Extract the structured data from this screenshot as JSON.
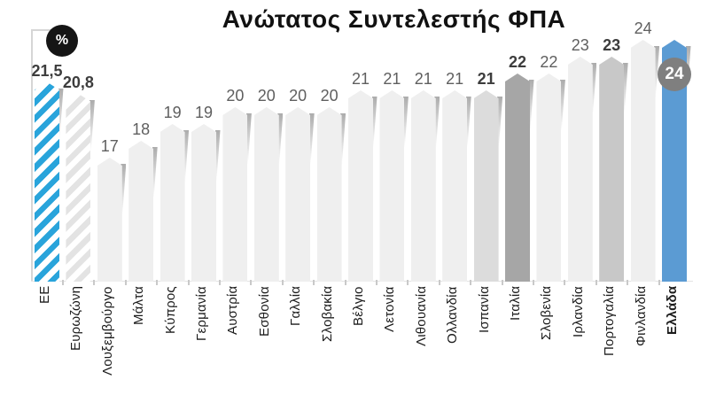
{
  "title": "Ανώτατος Συντελεστής ΦΠΑ",
  "unit_badge": "%",
  "greece_badge_value": "24",
  "colors": {
    "stripe_blue": "#29a4db",
    "stripe_gray": "#e3e3e3",
    "default_bar": "#efefef",
    "spain_bar": "#dcdcdc",
    "italy_bar": "#a6a6a6",
    "portugal_bar": "#c8c8c8",
    "greece_bar": "#5b9bd3",
    "greece_badge_bg": "#7f7f7f",
    "pct_badge_bg": "#151515",
    "value_text": "#5f5f5f",
    "value_text_bold": "#3d3d3d",
    "label_text": "#1b1b1b"
  },
  "chart_data": {
    "type": "bar",
    "title": "Ανώτατος Συντελεστής ΦΠΑ",
    "unit": "%",
    "xlabel": "",
    "ylabel": "",
    "grid": false,
    "legend": "none",
    "ylim": [
      9.6,
      24
    ],
    "categories": [
      "ΕΕ",
      "Ευρωζώνη",
      "Λουξεμβούργο",
      "Μάλτα",
      "Κύπρος",
      "Γερμανία",
      "Αυστρία",
      "Εσθονία",
      "Γαλλία",
      "Σλοβακία",
      "Βέλγιο",
      "Λετονία",
      "Λιθουανία",
      "Ολλανδία",
      "Ισπανία",
      "Ιταλία",
      "Σλοβενία",
      "Ιρλανδία",
      "Πορτογαλία",
      "Φινλανδία",
      "Ελλάδα"
    ],
    "values": [
      21.5,
      20.8,
      17,
      18,
      19,
      19,
      20,
      20,
      20,
      20,
      21,
      21,
      21,
      21,
      21,
      22,
      22,
      23,
      23,
      24,
      24
    ],
    "bars": [
      {
        "label": "ΕΕ",
        "value": 21.5,
        "display": "21,5",
        "style": "striped-blue",
        "value_bold": true
      },
      {
        "label": "Ευρωζώνη",
        "value": 20.8,
        "display": "20,8",
        "style": "striped-gray",
        "value_bold": true
      },
      {
        "label": "Λουξεμβούργο",
        "value": 17,
        "display": "17",
        "style": "solid"
      },
      {
        "label": "Μάλτα",
        "value": 18,
        "display": "18",
        "style": "solid"
      },
      {
        "label": "Κύπρος",
        "value": 19,
        "display": "19",
        "style": "solid"
      },
      {
        "label": "Γερμανία",
        "value": 19,
        "display": "19",
        "style": "solid"
      },
      {
        "label": "Αυστρία",
        "value": 20,
        "display": "20",
        "style": "solid"
      },
      {
        "label": "Εσθονία",
        "value": 20,
        "display": "20",
        "style": "solid"
      },
      {
        "label": "Γαλλία",
        "value": 20,
        "display": "20",
        "style": "solid"
      },
      {
        "label": "Σλοβακία",
        "value": 20,
        "display": "20",
        "style": "solid"
      },
      {
        "label": "Βέλγιο",
        "value": 21,
        "display": "21",
        "style": "solid"
      },
      {
        "label": "Λετονία",
        "value": 21,
        "display": "21",
        "style": "solid"
      },
      {
        "label": "Λιθουανία",
        "value": 21,
        "display": "21",
        "style": "solid"
      },
      {
        "label": "Ολλανδία",
        "value": 21,
        "display": "21",
        "style": "solid"
      },
      {
        "label": "Ισπανία",
        "value": 21,
        "display": "21",
        "style": "solid",
        "color": "#dcdcdc",
        "value_bold": true
      },
      {
        "label": "Ιταλία",
        "value": 22,
        "display": "22",
        "style": "solid",
        "color": "#a6a6a6",
        "value_bold": true
      },
      {
        "label": "Σλοβενία",
        "value": 22,
        "display": "22",
        "style": "solid"
      },
      {
        "label": "Ιρλανδία",
        "value": 23,
        "display": "23",
        "style": "solid"
      },
      {
        "label": "Πορτογαλία",
        "value": 23,
        "display": "23",
        "style": "solid",
        "color": "#c8c8c8",
        "value_bold": true
      },
      {
        "label": "Φινλανδία",
        "value": 24,
        "display": "24",
        "style": "solid"
      },
      {
        "label": "Ελλάδα",
        "value": 24,
        "display": "24",
        "style": "solid",
        "color": "#5b9bd3",
        "badge": true,
        "label_bold": true
      }
    ]
  }
}
